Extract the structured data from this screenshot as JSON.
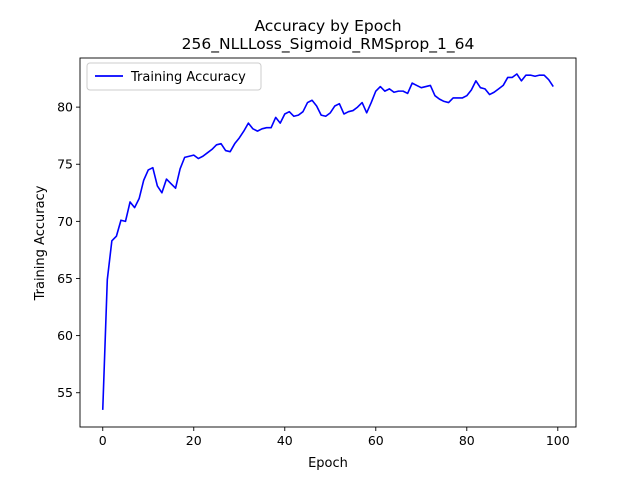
{
  "chart_data": {
    "type": "line",
    "title": "Accuracy by Epoch",
    "subtitle": "256_NLLLoss_Sigmoid_RMSprop_1_64",
    "xlabel": "Epoch",
    "ylabel": "Training Accuracy",
    "xlim": [
      -5,
      104
    ],
    "ylim": [
      52.0,
      84.3
    ],
    "xticks": [
      0,
      20,
      40,
      60,
      80,
      100
    ],
    "yticks": [
      55,
      60,
      65,
      70,
      75,
      80
    ],
    "grid": false,
    "legend_position": "upper-left",
    "series": [
      {
        "name": "Training Accuracy",
        "color": "#0000ff",
        "x": [
          0,
          1,
          2,
          3,
          4,
          5,
          6,
          7,
          8,
          9,
          10,
          11,
          12,
          13,
          14,
          15,
          16,
          17,
          18,
          19,
          20,
          21,
          22,
          23,
          24,
          25,
          26,
          27,
          28,
          29,
          30,
          31,
          32,
          33,
          34,
          35,
          36,
          37,
          38,
          39,
          40,
          41,
          42,
          43,
          44,
          45,
          46,
          47,
          48,
          49,
          50,
          51,
          52,
          53,
          54,
          55,
          56,
          57,
          58,
          59,
          60,
          61,
          62,
          63,
          64,
          65,
          66,
          67,
          68,
          69,
          70,
          71,
          72,
          73,
          74,
          75,
          76,
          77,
          78,
          79,
          80,
          81,
          82,
          83,
          84,
          85,
          86,
          87,
          88,
          89,
          90,
          91,
          92,
          93,
          94,
          95,
          96,
          97,
          98,
          99
        ],
        "y": [
          53.5,
          64.9,
          68.3,
          68.7,
          70.1,
          70.0,
          71.7,
          71.2,
          72.0,
          73.6,
          74.5,
          74.7,
          73.1,
          72.5,
          73.7,
          73.3,
          72.9,
          74.6,
          75.6,
          75.7,
          75.8,
          75.5,
          75.7,
          76.0,
          76.3,
          76.7,
          76.8,
          76.2,
          76.1,
          76.8,
          77.3,
          77.9,
          78.6,
          78.1,
          77.9,
          78.1,
          78.2,
          78.2,
          79.1,
          78.6,
          79.4,
          79.6,
          79.2,
          79.3,
          79.6,
          80.4,
          80.6,
          80.1,
          79.3,
          79.2,
          79.5,
          80.1,
          80.3,
          79.4,
          79.6,
          79.7,
          80.0,
          80.4,
          79.5,
          80.4,
          81.4,
          81.8,
          81.4,
          81.6,
          81.3,
          81.4,
          81.4,
          81.2,
          82.1,
          81.9,
          81.7,
          81.8,
          81.9,
          81.0,
          80.7,
          80.5,
          80.4,
          80.8,
          80.8,
          80.8,
          81.0,
          81.5,
          82.3,
          81.7,
          81.6,
          81.1,
          81.3,
          81.6,
          81.9,
          82.6,
          82.6,
          82.9,
          82.3,
          82.8,
          82.8,
          82.7,
          82.8,
          82.8,
          82.4,
          81.8
        ]
      }
    ]
  }
}
